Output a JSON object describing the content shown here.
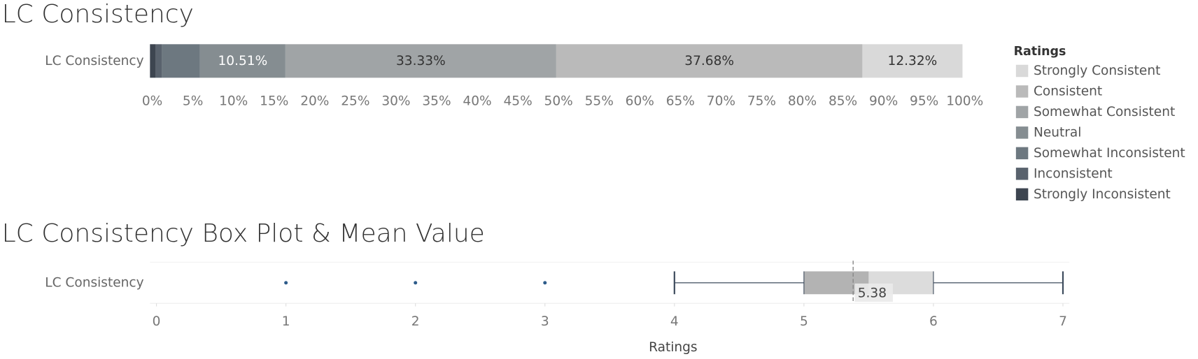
{
  "chart_data": [
    {
      "type": "stacked-bar",
      "title": "LC Consistency",
      "categories": [
        "LC Consistency"
      ],
      "legend_title": "Ratings",
      "legend": "right",
      "series": [
        {
          "name": "Strongly Consistent",
          "color": "#d9d9d9",
          "values": [
            12.32
          ],
          "value_labels": [
            "12.32%"
          ]
        },
        {
          "name": "Consistent",
          "color": "#bababa",
          "values": [
            37.68
          ],
          "value_labels": [
            "37.68%"
          ]
        },
        {
          "name": "Somewhat Consistent",
          "color": "#a0a4a6",
          "values": [
            33.33
          ],
          "value_labels": [
            "33.33%"
          ]
        },
        {
          "name": "Neutral",
          "color": "#858d91",
          "values": [
            10.51
          ],
          "value_labels": [
            "10.51%"
          ]
        },
        {
          "name": "Somewhat Inconsistent",
          "color": "#6d7880",
          "values": [
            4.72
          ],
          "value_labels": [
            null
          ]
        },
        {
          "name": "Inconsistent",
          "color": "#59626d",
          "values": [
            0.72
          ],
          "value_labels": [
            null
          ]
        },
        {
          "name": "Strongly Inconsistent",
          "color": "#3d4550",
          "values": [
            0.72
          ],
          "value_labels": [
            null
          ]
        }
      ],
      "xlim": [
        0,
        100
      ],
      "xticks": [
        {
          "value": 0,
          "label": "0%"
        },
        {
          "value": 5,
          "label": "5%"
        },
        {
          "value": 10,
          "label": "10%"
        },
        {
          "value": 15,
          "label": "15%"
        },
        {
          "value": 20,
          "label": "20%"
        },
        {
          "value": 25,
          "label": "25%"
        },
        {
          "value": 30,
          "label": "30%"
        },
        {
          "value": 35,
          "label": "35%"
        },
        {
          "value": 40,
          "label": "40%"
        },
        {
          "value": 45,
          "label": "45%"
        },
        {
          "value": 50,
          "label": "50%"
        },
        {
          "value": 55,
          "label": "55%"
        },
        {
          "value": 60,
          "label": "60%"
        },
        {
          "value": 65,
          "label": "65%"
        },
        {
          "value": 70,
          "label": "70%"
        },
        {
          "value": 75,
          "label": "75%"
        },
        {
          "value": 80,
          "label": "80%"
        },
        {
          "value": 85,
          "label": "85%"
        },
        {
          "value": 90,
          "label": "90%"
        },
        {
          "value": 95,
          "label": "95%"
        },
        {
          "value": 100,
          "label": "100%"
        }
      ]
    },
    {
      "type": "box",
      "title": "LC Consistency Box Plot & Mean Value",
      "categories": [
        "LC Consistency"
      ],
      "xlabel": "Ratings",
      "boxes": [
        {
          "whislo": 4,
          "q1": 5,
          "med": 5.5,
          "q3": 6,
          "whishi": 7,
          "mean": 5.38,
          "mean_label": "5.38",
          "fliers": [
            1,
            2,
            3
          ]
        }
      ],
      "lower_color": "#b3b3b3",
      "upper_color": "#dcdcdc",
      "line_color": "#3d4b5c",
      "flier_color": "#2e5c8a",
      "xlim": [
        -0.05,
        7.05
      ],
      "xticks": [
        0,
        1,
        2,
        3,
        4,
        5,
        6,
        7
      ]
    }
  ]
}
